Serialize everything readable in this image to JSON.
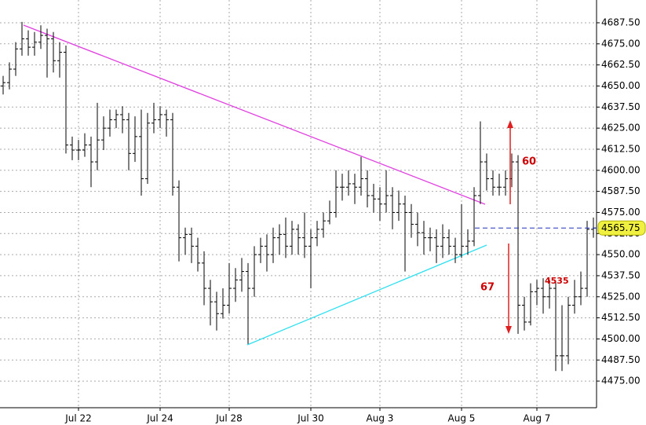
{
  "chart_data": {
    "type": "ohlc",
    "categories": [
      null,
      null,
      null,
      null,
      null,
      null,
      null,
      null,
      null,
      null,
      null,
      null,
      "Jul 22",
      null,
      null,
      null,
      null,
      null,
      null,
      null,
      null,
      null,
      null,
      null,
      null,
      "Jul 24",
      null,
      null,
      null,
      null,
      null,
      null,
      null,
      null,
      null,
      null,
      "Jul 28",
      null,
      null,
      null,
      null,
      null,
      null,
      null,
      null,
      null,
      null,
      null,
      null,
      "Jul 30",
      null,
      null,
      null,
      null,
      null,
      null,
      null,
      null,
      null,
      null,
      "Aug 3",
      null,
      null,
      null,
      null,
      null,
      null,
      null,
      null,
      null,
      null,
      null,
      null,
      "Aug 5",
      null,
      null,
      null,
      null,
      null,
      null,
      null,
      null,
      null,
      null,
      null,
      "Aug 7",
      null,
      null,
      null,
      null,
      null,
      null,
      null,
      null,
      null
    ],
    "color": "#000000",
    "open": [
      4650,
      4652,
      4660,
      4672,
      4678,
      4673,
      4676,
      4680,
      4678,
      4665,
      4670,
      4615,
      4612,
      4612,
      4615,
      4605,
      4618,
      4625,
      4630,
      4633,
      4630,
      4610,
      4620,
      4595,
      4628,
      4630,
      4633,
      4630,
      4590,
      4560,
      4562,
      4555,
      4545,
      4530,
      4522,
      4515,
      4520,
      4530,
      4535,
      4540,
      4530,
      4550,
      4555,
      4550,
      4560,
      4562,
      4555,
      4565,
      4560,
      4555,
      4560,
      4565,
      4570,
      4575,
      4590,
      4590,
      4592,
      4590,
      4595,
      4585,
      4583,
      4580,
      4585,
      4575,
      4580,
      4575,
      4568,
      4563,
      4560,
      4560,
      4555,
      4560,
      4555,
      4550,
      4555,
      4558,
      4585,
      4605,
      4595,
      4590,
      4590,
      4595,
      4605,
      4520,
      4510,
      4528,
      4530,
      4525,
      4530,
      4490,
      4490,
      4520,
      4525,
      4530,
      4565
    ],
    "high": [
      4656,
      4664,
      4676,
      4688,
      4683,
      4682,
      4686,
      4684,
      4682,
      4676,
      4674,
      4620,
      4618,
      4622,
      4620,
      4640,
      4632,
      4636,
      4636,
      4638,
      4634,
      4632,
      4636,
      4634,
      4640,
      4638,
      4636,
      4634,
      4594,
      4566,
      4566,
      4560,
      4552,
      4535,
      4528,
      4530,
      4545,
      4542,
      4548,
      4545,
      4555,
      4560,
      4562,
      4566,
      4568,
      4572,
      4570,
      4568,
      4575,
      4565,
      4570,
      4575,
      4582,
      4600,
      4598,
      4600,
      4598,
      4608,
      4600,
      4592,
      4590,
      4600,
      4590,
      4588,
      4585,
      4580,
      4575,
      4570,
      4566,
      4565,
      4568,
      4565,
      4560,
      4580,
      4565,
      4590,
      4629,
      4610,
      4600,
      4598,
      4600,
      4610,
      4609,
      4525,
      4533,
      4535,
      4536,
      4535,
      4534,
      4520,
      4525,
      4535,
      4540,
      4570,
      4572
    ],
    "low": [
      4645,
      4648,
      4656,
      4668,
      4668,
      4668,
      4672,
      4655,
      4658,
      4655,
      4610,
      4606,
      4606,
      4608,
      4590,
      4600,
      4612,
      4620,
      4625,
      4622,
      4600,
      4605,
      4585,
      4592,
      4622,
      4625,
      4620,
      4585,
      4546,
      4550,
      4545,
      4540,
      4520,
      4508,
      4505,
      4512,
      4515,
      4522,
      4528,
      4497,
      4525,
      4545,
      4540,
      4545,
      4550,
      4548,
      4550,
      4550,
      4548,
      4530,
      4555,
      4560,
      4568,
      4572,
      4582,
      4585,
      4580,
      4585,
      4578,
      4575,
      4570,
      4575,
      4565,
      4570,
      4540,
      4560,
      4555,
      4550,
      4552,
      4545,
      4548,
      4550,
      4545,
      4548,
      4550,
      4555,
      4580,
      4588,
      4585,
      4585,
      4585,
      4590,
      4503,
      4505,
      4508,
      4520,
      4515,
      4518,
      4481,
      4481,
      4485,
      4515,
      4520,
      4525,
      4560
    ],
    "close": [
      4652,
      4660,
      4672,
      4678,
      4673,
      4676,
      4680,
      4678,
      4665,
      4670,
      4615,
      4612,
      4612,
      4615,
      4605,
      4618,
      4625,
      4630,
      4633,
      4630,
      4610,
      4620,
      4595,
      4628,
      4630,
      4633,
      4630,
      4590,
      4560,
      4562,
      4555,
      4545,
      4530,
      4522,
      4515,
      4520,
      4530,
      4535,
      4540,
      4530,
      4550,
      4555,
      4550,
      4560,
      4562,
      4555,
      4565,
      4560,
      4555,
      4560,
      4565,
      4570,
      4575,
      4590,
      4590,
      4592,
      4590,
      4595,
      4585,
      4583,
      4580,
      4585,
      4575,
      4580,
      4575,
      4568,
      4563,
      4560,
      4560,
      4555,
      4560,
      4555,
      4550,
      4555,
      4558,
      4585,
      4605,
      4595,
      4590,
      4590,
      4595,
      4605,
      4520,
      4510,
      4528,
      4530,
      4525,
      4530,
      4490,
      4490,
      4520,
      4525,
      4530,
      4565,
      4565.75
    ],
    "last_price": 4565.75,
    "ylim": [
      4459.2,
      4701.0
    ],
    "yticks": [
      {
        "value": 4475,
        "label": "4475.00"
      },
      {
        "value": 4487.5,
        "label": "4487.50"
      },
      {
        "value": 4500,
        "label": "4500.00"
      },
      {
        "value": 4512.5,
        "label": "4512.50"
      },
      {
        "value": 4525,
        "label": "4525.00"
      },
      {
        "value": 4537.5,
        "label": "4537.50"
      },
      {
        "value": 4550,
        "label": "4550.00"
      },
      {
        "value": 4562.5,
        "label": "4562.50"
      },
      {
        "value": 4575,
        "label": "4575.00"
      },
      {
        "value": 4587.5,
        "label": "4587.50"
      },
      {
        "value": 4600,
        "label": "4600.00"
      },
      {
        "value": 4612.5,
        "label": "4612.50"
      },
      {
        "value": 4625,
        "label": "4625.00"
      },
      {
        "value": 4637.5,
        "label": "4637.50"
      },
      {
        "value": 4650,
        "label": "4650.00"
      },
      {
        "value": 4662.5,
        "label": "4662.50"
      },
      {
        "value": 4675,
        "label": "4675.00"
      },
      {
        "value": 4687.5,
        "label": "4687.50"
      }
    ],
    "grid": true,
    "annotations": [
      "60",
      "67",
      "4535"
    ]
  }
}
